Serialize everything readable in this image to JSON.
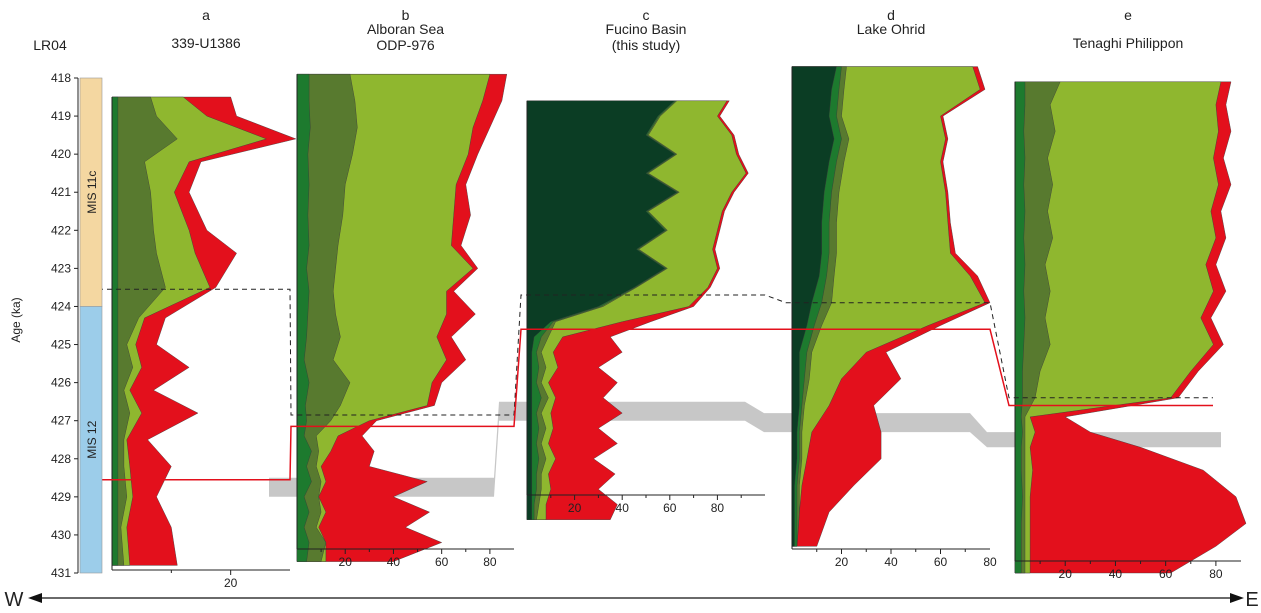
{
  "figure": {
    "direction": {
      "west_label": "W",
      "east_label": "E"
    },
    "colors": {
      "dark_forest": "#0b3d24",
      "forest_green": "#1d7a2e",
      "olive_green": "#587a2f",
      "light_green": "#8fb72f",
      "red": "#e3101c",
      "gray_band": "#bdbdbd",
      "lr04_mis11c": "#f4d7a1",
      "lr04_mis12": "#9ccdea"
    }
  },
  "chart_data": {
    "type": "area",
    "age_axis": {
      "label": "Age (ka)",
      "range": [
        418,
        431
      ],
      "ticks": [
        418,
        419,
        420,
        421,
        422,
        423,
        424,
        425,
        426,
        427,
        428,
        429,
        430,
        431
      ],
      "inverted": true
    },
    "lr04": {
      "title": "LR04",
      "stages": [
        {
          "name": "MIS 11c",
          "from": 418,
          "to": 424,
          "color": "#f4d7a1"
        },
        {
          "name": "MIS 12",
          "from": 424,
          "to": 431,
          "color": "#9ccdea"
        }
      ]
    },
    "panels": [
      {
        "letter": "a",
        "title": [
          "339-U1386"
        ],
        "age_range": [
          418.5,
          430.8
        ],
        "x_range": [
          0,
          30
        ],
        "x_ticks": [
          20
        ],
        "bands": [
          "forest_green",
          "olive_green",
          "light_green",
          "red"
        ],
        "ages": [
          418.5,
          419.0,
          419.6,
          420.2,
          421.0,
          422.0,
          422.6,
          423.5,
          424.3,
          425.0,
          425.6,
          426.2,
          426.8,
          427.5,
          428.2,
          429.0,
          429.8,
          430.8
        ],
        "forest": [
          1.0,
          1.0,
          1.0,
          1.0,
          1.0,
          1.0,
          1.0,
          1.0,
          1.0,
          1.0,
          1.0,
          1.0,
          1.0,
          1.0,
          1.0,
          1.0,
          1.0,
          1.0
        ],
        "olive": [
          6.5,
          7.5,
          11.0,
          5.5,
          6.5,
          7.0,
          7.5,
          9.0,
          4.5,
          2.5,
          3.5,
          2.0,
          3.0,
          2.0,
          2.0,
          2.5,
          1.5,
          2.0
        ],
        "light": [
          12.0,
          16.0,
          26.0,
          13.0,
          10.5,
          13.0,
          14.0,
          16.5,
          5.5,
          4.0,
          5.0,
          3.0,
          5.0,
          2.5,
          3.0,
          3.5,
          2.5,
          3.0
        ],
        "red": [
          20.0,
          21.0,
          31.0,
          15.0,
          13.0,
          16.0,
          21.0,
          17.5,
          9.0,
          7.5,
          13.0,
          7.0,
          14.5,
          6.0,
          10.0,
          7.5,
          10.0,
          11.0
        ],
        "dashed_boundary": 423.55,
        "red_boundary": 428.55,
        "gray_band": null
      },
      {
        "letter": "b",
        "title": [
          "Alboran Sea",
          "ODP-976"
        ],
        "age_range": [
          417.9,
          430.7
        ],
        "x_range": [
          0,
          90
        ],
        "x_ticks": [
          20,
          40,
          60,
          80
        ],
        "bands": [
          "forest_green",
          "olive_green",
          "light_green",
          "red"
        ],
        "ages": [
          417.9,
          418.6,
          419.3,
          420.0,
          420.8,
          421.6,
          422.4,
          423.0,
          423.6,
          424.2,
          424.8,
          425.4,
          426.0,
          426.6,
          427.0,
          427.4,
          427.8,
          428.2,
          428.6,
          429.0,
          429.4,
          429.8,
          430.2,
          430.7
        ],
        "forest": [
          5.0,
          5.0,
          5.5,
          4.5,
          5.0,
          4.5,
          5.0,
          4.0,
          5.0,
          4.5,
          4.0,
          3.0,
          5.0,
          3.5,
          4.0,
          3.0,
          6.0,
          4.0,
          6.0,
          3.0,
          5.0,
          3.0,
          5.0,
          4.0
        ],
        "olive": [
          22.0,
          24.0,
          25.0,
          23.0,
          20.0,
          19.0,
          17.0,
          16.0,
          15.0,
          16.0,
          18.0,
          15.0,
          22.0,
          18.0,
          14.0,
          8.0,
          9.0,
          8.0,
          10.0,
          9.0,
          10.0,
          8.0,
          12.0,
          10.0
        ],
        "light": [
          80.0,
          77.0,
          73.0,
          71.0,
          66.0,
          65.0,
          64.0,
          73.0,
          62.0,
          62.0,
          58.0,
          62.0,
          56.0,
          54.0,
          30.0,
          17.0,
          14.0,
          10.0,
          12.0,
          9.0,
          12.0,
          9.0,
          12.0,
          12.0
        ],
        "red": [
          87.0,
          85.0,
          80.0,
          75.0,
          70.0,
          72.0,
          68.0,
          75.0,
          65.0,
          74.0,
          64.0,
          70.0,
          60.0,
          57.0,
          33.0,
          27.0,
          32.0,
          30.0,
          54.0,
          40.0,
          55.0,
          45.0,
          60.0,
          40.0
        ],
        "dashed_boundary": 426.85,
        "red_boundary": 427.15,
        "gray_band": [
          428.5,
          429.0
        ]
      },
      {
        "letter": "c",
        "title": [
          "Fucino Basin",
          "(this study)"
        ],
        "age_range": [
          418.6,
          429.6
        ],
        "x_range": [
          0,
          100
        ],
        "x_ticks": [
          20,
          40,
          60,
          80
        ],
        "bands": [
          "dark_forest",
          "forest_green",
          "olive_green",
          "light_green",
          "red"
        ],
        "ages": [
          418.6,
          419.0,
          419.5,
          420.0,
          420.5,
          421.0,
          421.5,
          422.0,
          422.5,
          423.0,
          423.5,
          424.0,
          424.4,
          424.8,
          425.2,
          425.6,
          426.0,
          426.4,
          426.8,
          427.2,
          427.6,
          428.0,
          428.4,
          428.8,
          429.2,
          429.6
        ],
        "dark": [
          62.0,
          55.0,
          50.0,
          62.0,
          50.0,
          63.0,
          50.0,
          58.0,
          46.0,
          58.0,
          45.0,
          30.0,
          10.0,
          3.0,
          2.0,
          2.0,
          2.0,
          2.0,
          2.0,
          2.0,
          2.0,
          2.0,
          2.0,
          2.0,
          2.0,
          2.0
        ],
        "forest": [
          62.5,
          55.5,
          50.5,
          62.5,
          50.5,
          63.5,
          50.5,
          58.5,
          46.5,
          58.5,
          45.5,
          31.0,
          11.0,
          6.0,
          4.0,
          5.0,
          4.0,
          6.0,
          4.0,
          5.0,
          4.0,
          5.0,
          4.0,
          4.0,
          3.0,
          3.0
        ],
        "olive": [
          63.0,
          56.0,
          51.0,
          63.0,
          51.0,
          64.0,
          51.0,
          59.0,
          47.0,
          59.0,
          46.0,
          32.0,
          12.0,
          9.0,
          6.0,
          8.0,
          6.0,
          9.0,
          6.0,
          8.0,
          6.0,
          8.0,
          6.0,
          6.0,
          5.0,
          4.0
        ],
        "light": [
          84.0,
          80.0,
          86.0,
          88.0,
          92.0,
          86.0,
          82.0,
          80.0,
          78.0,
          80.0,
          76.0,
          68.0,
          40.0,
          15.0,
          11.0,
          13.0,
          9.0,
          12.0,
          10.0,
          11.0,
          9.0,
          12.0,
          9.0,
          10.0,
          8.0,
          8.0
        ],
        "red": [
          85.0,
          81.0,
          87.0,
          89.0,
          93.0,
          87.0,
          83.0,
          81.0,
          79.0,
          81.0,
          77.0,
          70.0,
          52.0,
          35.0,
          40.0,
          30.0,
          38.0,
          32.0,
          40.0,
          30.0,
          38.0,
          28.0,
          37.0,
          30.0,
          38.0,
          35.0
        ],
        "dashed_boundary": 423.7,
        "red_boundary": 424.6,
        "gray_band": [
          426.5,
          427.0
        ]
      },
      {
        "letter": "d",
        "title": [
          "Lake Ohrid"
        ],
        "age_range": [
          417.7,
          430.3
        ],
        "x_range": [
          0,
          80
        ],
        "x_ticks": [
          20,
          40,
          60,
          80
        ],
        "bands": [
          "dark_forest",
          "forest_green",
          "olive_green",
          "light_green",
          "red"
        ],
        "ages": [
          417.7,
          418.3,
          419.0,
          419.6,
          420.2,
          421.0,
          421.8,
          422.6,
          423.2,
          423.9,
          424.5,
          425.2,
          425.9,
          426.6,
          427.3,
          428.0,
          428.7,
          429.4,
          430.3
        ],
        "dark": [
          18.0,
          16.0,
          15.0,
          17.0,
          15.0,
          13.0,
          12.0,
          12.0,
          11.0,
          8.0,
          6.0,
          3.0,
          3.0,
          3.0,
          2.0,
          2.0,
          1.0,
          1.0,
          1.0
        ],
        "forest": [
          20.0,
          19.0,
          18.0,
          20.0,
          18.0,
          16.0,
          15.0,
          15.0,
          14.0,
          12.0,
          9.0,
          6.0,
          5.0,
          4.0,
          3.0,
          3.0,
          2.0,
          2.0,
          2.0
        ],
        "olive": [
          22.0,
          21.0,
          20.0,
          23.0,
          21.0,
          19.0,
          18.0,
          18.0,
          17.0,
          16.0,
          12.0,
          8.0,
          7.0,
          5.0,
          4.0,
          4.0,
          3.0,
          3.0,
          2.0
        ],
        "light": [
          73.0,
          76.0,
          60.0,
          62.0,
          60.0,
          62.0,
          63.0,
          64.0,
          72.0,
          78.0,
          55.0,
          30.0,
          20.0,
          15.0,
          8.0,
          6.0,
          4.0,
          3.0,
          2.0
        ],
        "red": [
          75.0,
          78.0,
          61.0,
          63.0,
          61.0,
          63.0,
          64.0,
          66.0,
          75.0,
          80.0,
          60.0,
          38.0,
          44.0,
          33.0,
          36.0,
          36.0,
          25.0,
          15.0,
          10.0
        ],
        "dashed_boundary": 423.9,
        "red_boundary": 424.6,
        "gray_band": [
          426.8,
          427.3
        ]
      },
      {
        "letter": "e",
        "title": [
          "Tenaghi Philippon"
        ],
        "age_range": [
          418.1,
          431.0
        ],
        "x_range": [
          0,
          90
        ],
        "x_ticks": [
          20,
          40,
          60,
          80
        ],
        "bands": [
          "forest_green",
          "olive_green",
          "light_green",
          "red"
        ],
        "ages": [
          418.1,
          418.7,
          419.4,
          420.1,
          420.8,
          421.5,
          422.2,
          422.9,
          423.6,
          424.3,
          425.0,
          425.7,
          426.4,
          426.9,
          427.3,
          427.7,
          428.3,
          429.0,
          429.7,
          430.3,
          431.0
        ],
        "forest": [
          4.0,
          4.0,
          3.5,
          4.0,
          3.5,
          4.0,
          3.5,
          4.0,
          3.5,
          4.0,
          3.5,
          3.0,
          3.0,
          2.5,
          3.0,
          2.5,
          2.5,
          3.0,
          2.5,
          2.5,
          2.5
        ],
        "olive": [
          18.0,
          14.0,
          16.0,
          13.0,
          15.0,
          13.0,
          15.0,
          12.0,
          14.0,
          12.0,
          14.0,
          10.0,
          8.0,
          4.0,
          4.0,
          4.0,
          4.0,
          4.0,
          4.0,
          4.0,
          4.0
        ],
        "light": [
          82.0,
          80.0,
          81.0,
          79.0,
          81.0,
          78.0,
          80.0,
          76.0,
          79.0,
          74.0,
          79.0,
          70.0,
          62.0,
          6.0,
          8.0,
          6.0,
          7.0,
          6.0,
          6.0,
          6.0,
          6.0
        ],
        "red": [
          86.0,
          84.0,
          86.0,
          83.0,
          86.0,
          82.0,
          84.0,
          80.0,
          84.0,
          78.0,
          83.0,
          73.0,
          65.0,
          20.0,
          30.0,
          50.0,
          75.0,
          88.0,
          92.0,
          80.0,
          62.0
        ],
        "dashed_boundary": 426.4,
        "red_boundary": 426.6,
        "gray_band": [
          427.3,
          427.7
        ]
      }
    ]
  }
}
